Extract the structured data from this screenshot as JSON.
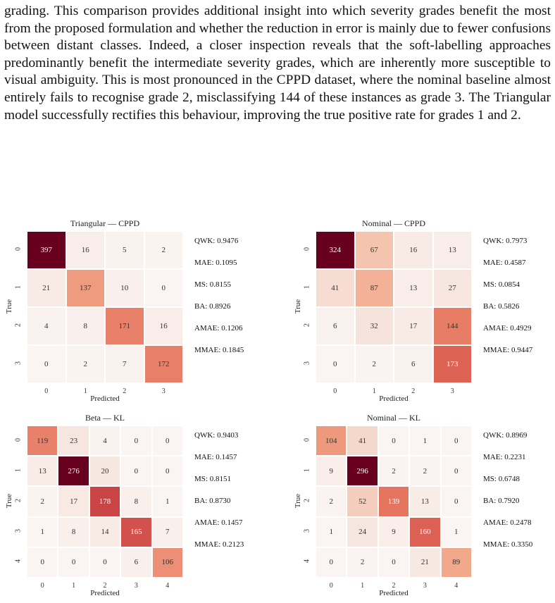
{
  "paragraph": "grading. This comparison provides additional insight into which severity grades benefit the most from the proposed formulation and whether the reduction in error is mainly due to fewer confusions between distant classes. Indeed, a closer inspection reveals that the soft-labelling approaches predominantly benefit the intermediate severity grades, which are inherently more susceptible to visual ambiguity. This is most pronounced in the CPPD dataset, where the nominal baseline almost entirely fails to recognise grade 2, misclassifying 144 of these instances as grade 3. The Triangular model successfully rectifies this behaviour, improving the true positive rate for grades 1 and 2.",
  "colors": {
    "low": "#f7f2f0",
    "high": "#67001f"
  },
  "chart_data": [
    {
      "type": "heatmap",
      "title": "Triangular — CPPD",
      "xlabel": "Predicted",
      "ylabel": "True",
      "x_ticks": [
        "0",
        "1",
        "2",
        "3"
      ],
      "y_ticks": [
        "0",
        "1",
        "2",
        "3"
      ],
      "matrix": [
        [
          397,
          16,
          5,
          2
        ],
        [
          21,
          137,
          10,
          0
        ],
        [
          4,
          8,
          171,
          16
        ],
        [
          0,
          2,
          7,
          172
        ]
      ],
      "metrics": [
        "QWK: 0.9476",
        "MAE: 0.1095",
        "MS: 0.8155",
        "BA: 0.8926",
        "AMAE: 0.1206",
        "MMAE: 0.1845"
      ]
    },
    {
      "type": "heatmap",
      "title": "Nominal — CPPD",
      "xlabel": "Predicted",
      "ylabel": "True",
      "x_ticks": [
        "0",
        "1",
        "2",
        "3"
      ],
      "y_ticks": [
        "0",
        "1",
        "2",
        "3"
      ],
      "matrix": [
        [
          324,
          67,
          16,
          13
        ],
        [
          41,
          87,
          13,
          27
        ],
        [
          6,
          32,
          17,
          144
        ],
        [
          0,
          2,
          6,
          173
        ]
      ],
      "metrics": [
        "QWK: 0.7973",
        "MAE: 0.4587",
        "MS: 0.0854",
        "BA: 0.5826",
        "AMAE: 0.4929",
        "MMAE: 0.9447"
      ]
    },
    {
      "type": "heatmap",
      "title": "Beta — KL",
      "xlabel": "Predicted",
      "ylabel": "True",
      "x_ticks": [
        "0",
        "1",
        "2",
        "3",
        "4"
      ],
      "y_ticks": [
        "0",
        "1",
        "2",
        "3",
        "4"
      ],
      "matrix": [
        [
          119,
          23,
          4,
          0,
          0
        ],
        [
          13,
          276,
          20,
          0,
          0
        ],
        [
          2,
          17,
          178,
          8,
          1
        ],
        [
          1,
          8,
          14,
          165,
          7
        ],
        [
          0,
          0,
          0,
          6,
          106
        ]
      ],
      "metrics": [
        "QWK: 0.9403",
        "MAE: 0.1457",
        "MS: 0.8151",
        "BA: 0.8730",
        "AMAE: 0.1457",
        "MMAE: 0.2123"
      ]
    },
    {
      "type": "heatmap",
      "title": "Nominal — KL",
      "xlabel": "Predicted",
      "ylabel": "True",
      "x_ticks": [
        "0",
        "1",
        "2",
        "3",
        "4"
      ],
      "y_ticks": [
        "0",
        "1",
        "2",
        "3",
        "4"
      ],
      "matrix": [
        [
          104,
          41,
          0,
          1,
          0
        ],
        [
          9,
          296,
          2,
          2,
          0
        ],
        [
          2,
          52,
          139,
          13,
          0
        ],
        [
          1,
          24,
          9,
          160,
          1
        ],
        [
          0,
          2,
          0,
          21,
          89
        ]
      ],
      "metrics": [
        "QWK: 0.8969",
        "MAE: 0.2231",
        "MS: 0.6748",
        "BA: 0.7920",
        "AMAE: 0.2478",
        "MMAE: 0.3350"
      ]
    }
  ]
}
